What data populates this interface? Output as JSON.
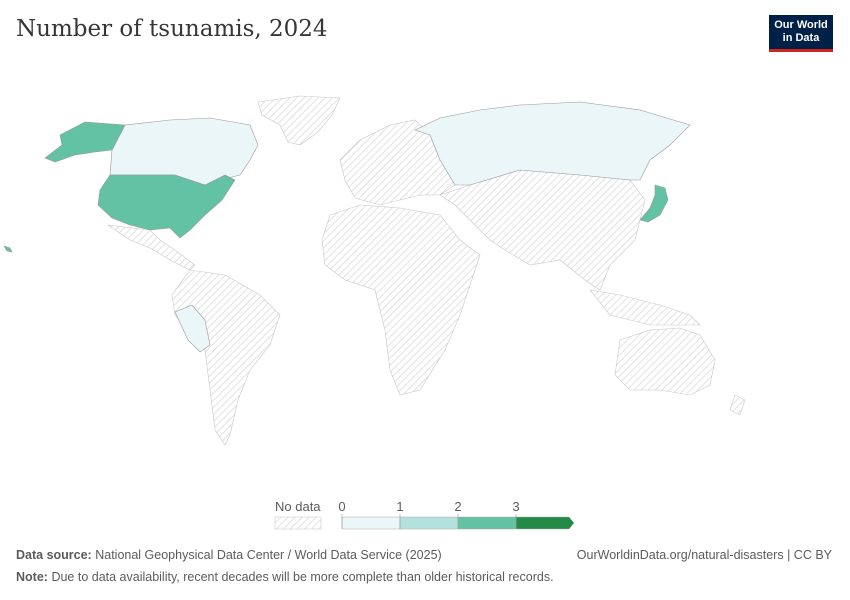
{
  "title": "Number of tsunamis, 2024",
  "logo": {
    "line1": "Our World",
    "line2": "in Data"
  },
  "legend": {
    "no_data_label": "No data",
    "ticks": [
      "0",
      "1",
      "2",
      "3"
    ],
    "bins": [
      {
        "range": "0–1",
        "color": "#eaf6f8"
      },
      {
        "range": "1–2",
        "color": "#b3e1de"
      },
      {
        "range": "2–3",
        "color": "#63c2a3"
      },
      {
        "range": "3+",
        "color": "#238b45"
      }
    ],
    "no_data_color": "#f2f2f2"
  },
  "countries": [
    {
      "name": "United States",
      "value": 2
    },
    {
      "name": "Japan",
      "value": 2
    },
    {
      "name": "Canada",
      "value": 0
    },
    {
      "name": "Russia",
      "value": 0
    },
    {
      "name": "Peru",
      "value": 0
    }
  ],
  "footer": {
    "source_label": "Data source:",
    "source": "National Geophysical Data Center / World Data Service (2025)",
    "url": "OurWorldinData.org/natural-disasters | CC BY",
    "note_label": "Note:",
    "note": "Due to data availability, recent decades will be more complete than older historical records."
  }
}
